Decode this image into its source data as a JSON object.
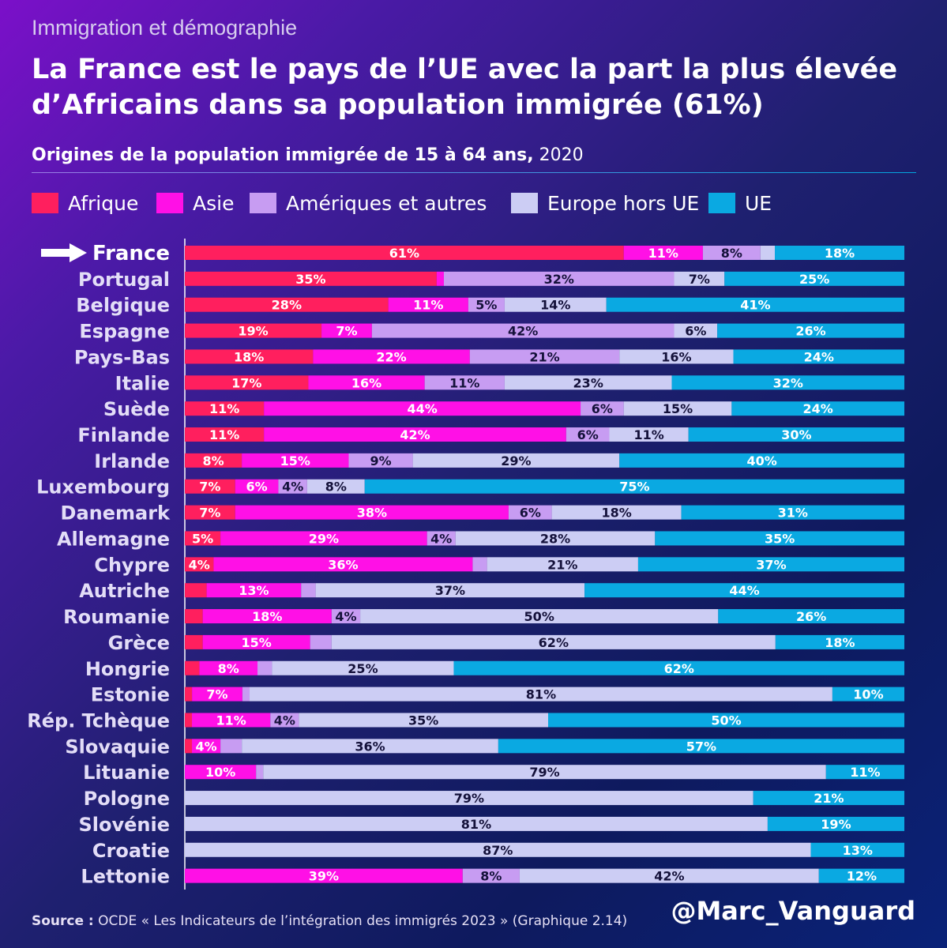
{
  "header": {
    "kicker": "Immigration et démographie",
    "title": "La France est le pays de l’UE avec la part la plus élevée d’Africains dans sa population immigrée (61%)",
    "subtitle_bold": "Origines de la population immigrée de 15 à 64 ans,",
    "subtitle_year": " 2020"
  },
  "footer": {
    "source_label": "Source :",
    "source_text": " OCDE « Les Indicateurs de l’intégration des immigrés 2023 » (Graphique 2.14)",
    "handle": "@Marc_Vanguard"
  },
  "colors": {
    "Afrique": "#ff1f5e",
    "Asie": "#ff10e6",
    "Ameriques": "#c79cf2",
    "EuropeHorsUE": "#cccdf4",
    "UE": "#0aa9e2"
  },
  "chart_data": {
    "type": "bar",
    "orientation": "horizontal",
    "stacked": true,
    "title": "Origines de la population immigrée de 15 à 64 ans, 2020",
    "unit": "%",
    "highlight": "France",
    "series": [
      {
        "name": "Afrique",
        "color_key": "Afrique",
        "values": [
          61,
          35,
          28,
          19,
          18,
          17,
          11,
          11,
          8,
          7,
          7,
          5,
          4,
          3,
          2.5,
          2.5,
          2,
          1,
          1,
          1,
          0,
          0,
          0,
          0,
          0
        ]
      },
      {
        "name": "Asie",
        "color_key": "Asie",
        "values": [
          11,
          1,
          11,
          7,
          22,
          16,
          44,
          42,
          15,
          6,
          38,
          29,
          36,
          13,
          18,
          15,
          8,
          7,
          11,
          4,
          10,
          0,
          0,
          0,
          39
        ]
      },
      {
        "name": "Amériques et autres",
        "color_key": "Ameriques",
        "values": [
          8,
          32,
          5,
          42,
          21,
          11,
          6,
          6,
          9,
          4,
          6,
          4,
          2,
          2,
          4,
          3,
          2,
          1,
          4,
          3,
          1,
          0,
          0,
          0,
          8
        ]
      },
      {
        "name": "Europe hors UE",
        "color_key": "EuropeHorsUE",
        "values": [
          2,
          7,
          14,
          6,
          16,
          23,
          15,
          11,
          29,
          8,
          18,
          28,
          21,
          37,
          50,
          62,
          25,
          81,
          35,
          36,
          79,
          79,
          81,
          87,
          42
        ]
      },
      {
        "name": "UE",
        "color_key": "UE",
        "values": [
          18,
          25,
          41,
          26,
          24,
          32,
          24,
          30,
          40,
          75,
          31,
          35,
          37,
          44,
          26,
          18,
          62,
          10,
          50,
          57,
          11,
          21,
          19,
          13,
          12
        ]
      }
    ],
    "labels": [
      [
        "61%",
        "11%",
        "8%",
        "",
        "18%"
      ],
      [
        "35%",
        "",
        "32%",
        "7%",
        "25%"
      ],
      [
        "28%",
        "11%",
        "5%",
        "14%",
        "41%"
      ],
      [
        "19%",
        "7%",
        "42%",
        "6%",
        "26%"
      ],
      [
        "18%",
        "22%",
        "21%",
        "16%",
        "24%"
      ],
      [
        "17%",
        "16%",
        "11%",
        "23%",
        "32%"
      ],
      [
        "11%",
        "44%",
        "6%",
        "15%",
        "24%"
      ],
      [
        "11%",
        "42%",
        "6%",
        "11%",
        "30%"
      ],
      [
        "8%",
        "15%",
        "9%",
        "29%",
        "40%"
      ],
      [
        "7%",
        "6%",
        "4%",
        "8%",
        "75%"
      ],
      [
        "7%",
        "38%",
        "6%",
        "18%",
        "31%"
      ],
      [
        "5%",
        "29%",
        "4%",
        "28%",
        "35%"
      ],
      [
        "4%",
        "36%",
        "",
        "21%",
        "37%"
      ],
      [
        "",
        "13%",
        "",
        "37%",
        "44%"
      ],
      [
        "",
        "18%",
        "4%",
        "50%",
        "26%"
      ],
      [
        "",
        "15%",
        "",
        "62%",
        "18%"
      ],
      [
        "",
        "8%",
        "",
        "25%",
        "62%"
      ],
      [
        "",
        "7%",
        "",
        "81%",
        "10%"
      ],
      [
        "",
        "11%",
        "4%",
        "35%",
        "50%"
      ],
      [
        "",
        "4%",
        "",
        "36%",
        "57%"
      ],
      [
        "",
        "10%",
        "",
        "79%",
        "11%"
      ],
      [
        "",
        "",
        "",
        "79%",
        "21%"
      ],
      [
        "",
        "",
        "",
        "81%",
        "19%"
      ],
      [
        "",
        "",
        "",
        "87%",
        "13%"
      ],
      [
        "",
        "39%",
        "8%",
        "42%",
        "12%"
      ]
    ],
    "categories": [
      "France",
      "Portugal",
      "Belgique",
      "Espagne",
      "Pays-Bas",
      "Italie",
      "Suède",
      "Finlande",
      "Irlande",
      "Luxembourg",
      "Danemark",
      "Allemagne",
      "Chypre",
      "Autriche",
      "Roumanie",
      "Grèce",
      "Hongrie",
      "Estonie",
      "Rép. Tchèque",
      "Slovaquie",
      "Lituanie",
      "Pologne",
      "Slovénie",
      "Croatie",
      "Lettonie"
    ],
    "xlim": [
      0,
      100
    ]
  }
}
